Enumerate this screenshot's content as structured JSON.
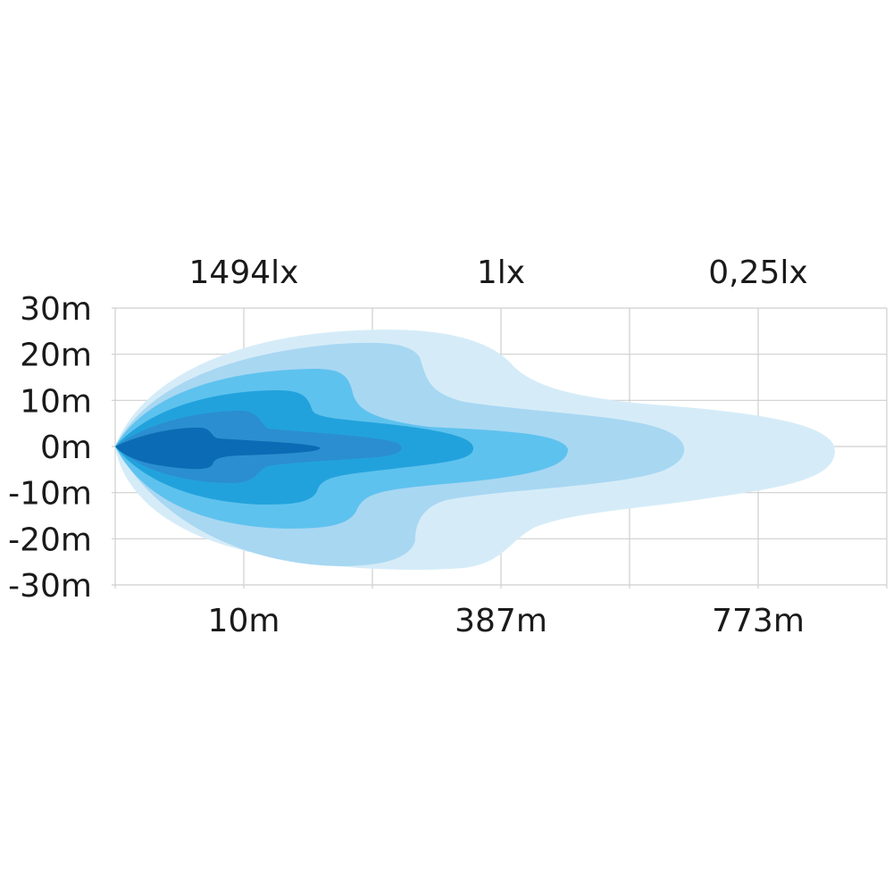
{
  "chart_data": {
    "type": "heatmap",
    "title": "",
    "lux_labels": [
      "1494lx",
      "1lx",
      "0,25lx"
    ],
    "distance_labels": [
      "10m",
      "387m",
      "773m"
    ],
    "y_ticks": [
      "30m",
      "20m",
      "10m",
      "0m",
      "-10m",
      "-20m",
      "-30m"
    ],
    "ylim": [
      -30,
      30
    ],
    "grid": true,
    "contour_colors": [
      "#d5ecf8",
      "#a8d7f2",
      "#5ec2ee",
      "#22a2dc",
      "#2b8ed0",
      "#0b6bb4"
    ]
  }
}
